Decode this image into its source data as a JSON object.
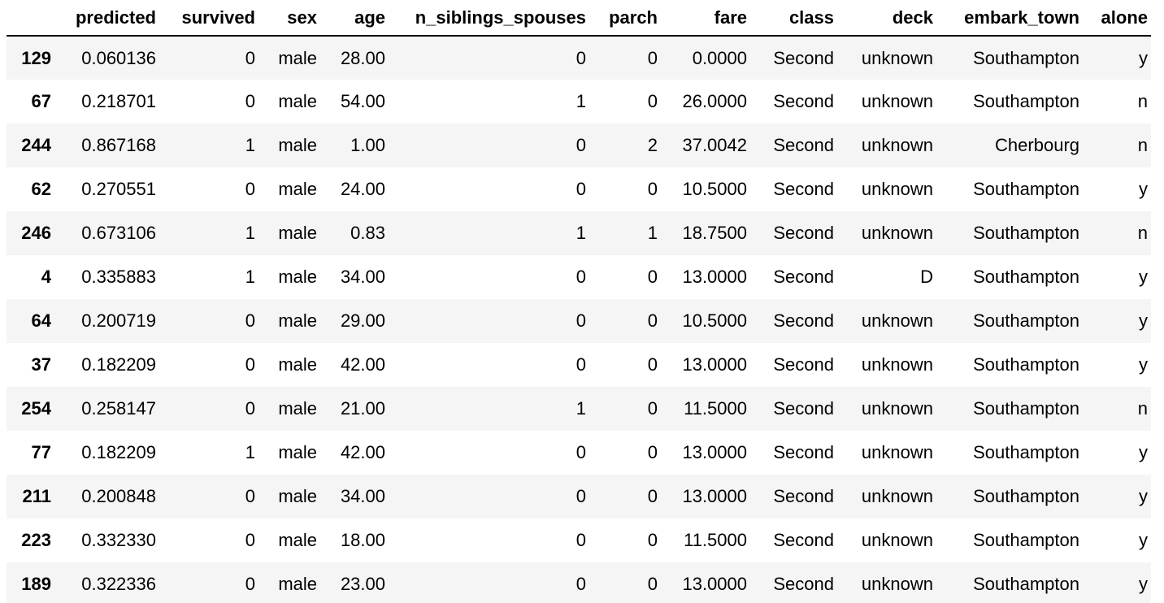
{
  "table": {
    "index_header": "",
    "columns": [
      "predicted",
      "survived",
      "sex",
      "age",
      "n_siblings_spouses",
      "parch",
      "fare",
      "class",
      "deck",
      "embark_town",
      "alone"
    ],
    "rows": [
      {
        "index": "129",
        "cells": [
          "0.060136",
          "0",
          "male",
          "28.00",
          "0",
          "0",
          "0.0000",
          "Second",
          "unknown",
          "Southampton",
          "y"
        ]
      },
      {
        "index": "67",
        "cells": [
          "0.218701",
          "0",
          "male",
          "54.00",
          "1",
          "0",
          "26.0000",
          "Second",
          "unknown",
          "Southampton",
          "n"
        ]
      },
      {
        "index": "244",
        "cells": [
          "0.867168",
          "1",
          "male",
          "1.00",
          "0",
          "2",
          "37.0042",
          "Second",
          "unknown",
          "Cherbourg",
          "n"
        ]
      },
      {
        "index": "62",
        "cells": [
          "0.270551",
          "0",
          "male",
          "24.00",
          "0",
          "0",
          "10.5000",
          "Second",
          "unknown",
          "Southampton",
          "y"
        ]
      },
      {
        "index": "246",
        "cells": [
          "0.673106",
          "1",
          "male",
          "0.83",
          "1",
          "1",
          "18.7500",
          "Second",
          "unknown",
          "Southampton",
          "n"
        ]
      },
      {
        "index": "4",
        "cells": [
          "0.335883",
          "1",
          "male",
          "34.00",
          "0",
          "0",
          "13.0000",
          "Second",
          "D",
          "Southampton",
          "y"
        ]
      },
      {
        "index": "64",
        "cells": [
          "0.200719",
          "0",
          "male",
          "29.00",
          "0",
          "0",
          "10.5000",
          "Second",
          "unknown",
          "Southampton",
          "y"
        ]
      },
      {
        "index": "37",
        "cells": [
          "0.182209",
          "0",
          "male",
          "42.00",
          "0",
          "0",
          "13.0000",
          "Second",
          "unknown",
          "Southampton",
          "y"
        ]
      },
      {
        "index": "254",
        "cells": [
          "0.258147",
          "0",
          "male",
          "21.00",
          "1",
          "0",
          "11.5000",
          "Second",
          "unknown",
          "Southampton",
          "n"
        ]
      },
      {
        "index": "77",
        "cells": [
          "0.182209",
          "1",
          "male",
          "42.00",
          "0",
          "0",
          "13.0000",
          "Second",
          "unknown",
          "Southampton",
          "y"
        ]
      },
      {
        "index": "211",
        "cells": [
          "0.200848",
          "0",
          "male",
          "34.00",
          "0",
          "0",
          "13.0000",
          "Second",
          "unknown",
          "Southampton",
          "y"
        ]
      },
      {
        "index": "223",
        "cells": [
          "0.332330",
          "0",
          "male",
          "18.00",
          "0",
          "0",
          "11.5000",
          "Second",
          "unknown",
          "Southampton",
          "y"
        ]
      },
      {
        "index": "189",
        "cells": [
          "0.322336",
          "0",
          "male",
          "23.00",
          "0",
          "0",
          "13.0000",
          "Second",
          "unknown",
          "Southampton",
          "y"
        ]
      }
    ]
  },
  "colors": {
    "stripe": "#f5f5f5",
    "background": "#ffffff",
    "text": "#000000"
  }
}
